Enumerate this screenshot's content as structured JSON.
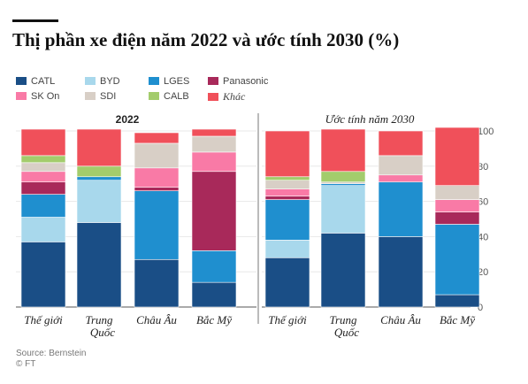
{
  "title": "Thị phần xe điện năm 2022 và ước tính 2030 (%)",
  "source": "Source: Bernstein",
  "credit": "© FT",
  "colors": {
    "CATL": "#1a4e86",
    "BYD": "#a8d8ec",
    "LGES": "#1f8fcf",
    "Panasonic": "#a8295a",
    "SK On": "#f97aa6",
    "SDI": "#d8cfc6",
    "CALB": "#a3cc6c",
    "Khác": "#f0505a"
  },
  "legend": [
    {
      "name": "CATL",
      "italic": false
    },
    {
      "name": "BYD",
      "italic": false
    },
    {
      "name": "LGES",
      "italic": false
    },
    {
      "name": "Panasonic",
      "italic": false
    },
    {
      "name": "SK On",
      "italic": false
    },
    {
      "name": "SDI",
      "italic": false
    },
    {
      "name": "CALB",
      "italic": false
    },
    {
      "name": "Khác",
      "italic": true
    }
  ],
  "chart_data": [
    {
      "type": "bar",
      "stacked": true,
      "title": "2022",
      "categories": [
        "Thế giới",
        "Trung Quốc",
        "Châu Âu",
        "Bắc Mỹ"
      ],
      "ylim": [
        0,
        100
      ],
      "yticks": [],
      "series": [
        {
          "name": "CATL",
          "values": [
            37,
            48,
            27,
            14
          ]
        },
        {
          "name": "BYD",
          "values": [
            14,
            24,
            0,
            0
          ]
        },
        {
          "name": "LGES",
          "values": [
            13,
            2,
            39,
            18
          ]
        },
        {
          "name": "Panasonic",
          "values": [
            7,
            0,
            2,
            45
          ]
        },
        {
          "name": "SK On",
          "values": [
            6,
            0,
            11,
            11
          ]
        },
        {
          "name": "SDI",
          "values": [
            5,
            0,
            14,
            9
          ]
        },
        {
          "name": "CALB",
          "values": [
            4,
            6,
            0,
            0
          ]
        },
        {
          "name": "Khác",
          "values": [
            15,
            21,
            6,
            4
          ]
        }
      ]
    },
    {
      "type": "bar",
      "stacked": true,
      "title": "Ước tính năm 2030",
      "categories": [
        "Thế giới",
        "Trung Quốc",
        "Châu Âu",
        "Bắc Mỹ"
      ],
      "ylim": [
        0,
        100
      ],
      "yticks": [
        0,
        20,
        40,
        60,
        80,
        100
      ],
      "series": [
        {
          "name": "CATL",
          "values": [
            28,
            42,
            40,
            7
          ]
        },
        {
          "name": "BYD",
          "values": [
            10,
            27,
            0,
            0
          ]
        },
        {
          "name": "LGES",
          "values": [
            23,
            1,
            31,
            40
          ]
        },
        {
          "name": "Panasonic",
          "values": [
            2,
            0,
            0,
            7
          ]
        },
        {
          "name": "SK On",
          "values": [
            4,
            0,
            4,
            7
          ]
        },
        {
          "name": "SDI",
          "values": [
            5,
            1,
            11,
            8
          ]
        },
        {
          "name": "CALB",
          "values": [
            2,
            6,
            0,
            0
          ]
        },
        {
          "name": "Khác",
          "values": [
            26,
            24,
            14,
            33
          ]
        }
      ]
    }
  ]
}
